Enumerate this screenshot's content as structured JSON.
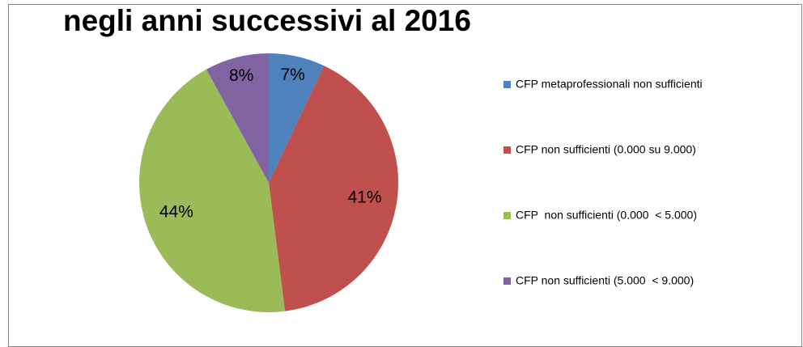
{
  "chart_data": {
    "type": "pie",
    "title": "negli anni successivi al 2016",
    "categories": [
      "CFP metaprofessionali non sufficienti",
      "CFP non sufficienti (0.000 su 9.000)",
      "CFP  non sufficienti (0.000  < 5.000)",
      "CFP non sufficienti (5.000  < 9.000)"
    ],
    "values": [
      7,
      41,
      44,
      8
    ],
    "value_labels": [
      "7%",
      "41%",
      "44%",
      "8%"
    ],
    "colors": [
      "#4f81bd",
      "#c0504d",
      "#9bbb59",
      "#8064a2"
    ],
    "legend": "right"
  }
}
